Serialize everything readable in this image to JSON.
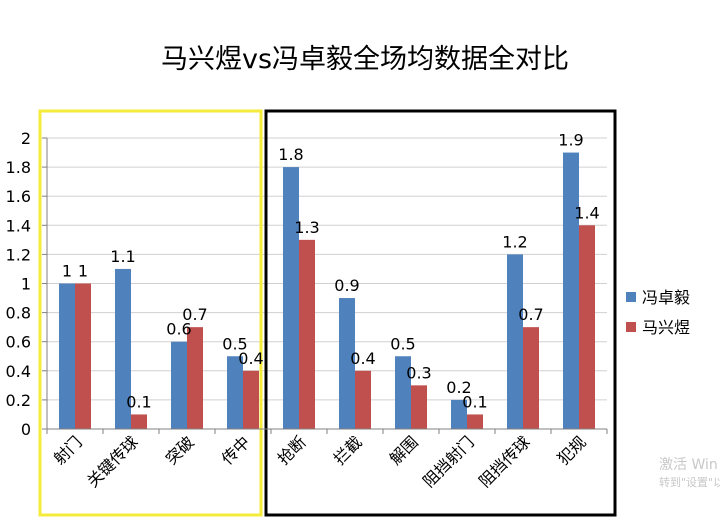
{
  "chart_data": {
    "type": "bar",
    "title": "马兴煜vs冯卓毅全场均数据全对比",
    "categories": [
      "射门",
      "关键传球",
      "突破",
      "传中",
      "抢断",
      "拦截",
      "解围",
      "阻挡射门",
      "阻挡传球",
      "犯规"
    ],
    "series": [
      {
        "name": "冯卓毅",
        "color": "#4f81bd",
        "values": [
          1,
          1.1,
          0.6,
          0.5,
          1.8,
          0.9,
          0.5,
          0.2,
          1.2,
          1.9
        ],
        "labels": [
          "1",
          "1.1",
          "0.6",
          "0.5",
          "1.8",
          "0.9",
          "0.5",
          "0.2",
          "1.2",
          "1.9"
        ]
      },
      {
        "name": "马兴煜",
        "color": "#c0504d",
        "values": [
          1,
          0.1,
          0.7,
          0.4,
          1.3,
          0.4,
          0.3,
          0.1,
          0.7,
          1.4
        ],
        "labels": [
          "1",
          "0.1",
          "0.7",
          "0.4",
          "1.3",
          "0.4",
          "0.3",
          "0.1",
          "0.7",
          "1.4"
        ]
      }
    ],
    "ylim": [
      0,
      2
    ],
    "yticks": [
      "0",
      "0.2",
      "0.4",
      "0.6",
      "0.8",
      "1",
      "1.2",
      "1.4",
      "1.6",
      "1.8",
      "2"
    ],
    "grid": true,
    "legend_position": "right",
    "highlight_groups": [
      {
        "name": "attack",
        "color": "#f5eb3a",
        "categories": [
          "射门",
          "关键传球",
          "突破",
          "传中"
        ]
      },
      {
        "name": "defense",
        "color": "#000000",
        "categories": [
          "抢断",
          "拦截",
          "解围",
          "阻挡射门",
          "阻挡传球",
          "犯规"
        ]
      }
    ]
  },
  "watermark": {
    "line1": "激活 Win",
    "line2": "转到\"设置\"以"
  }
}
